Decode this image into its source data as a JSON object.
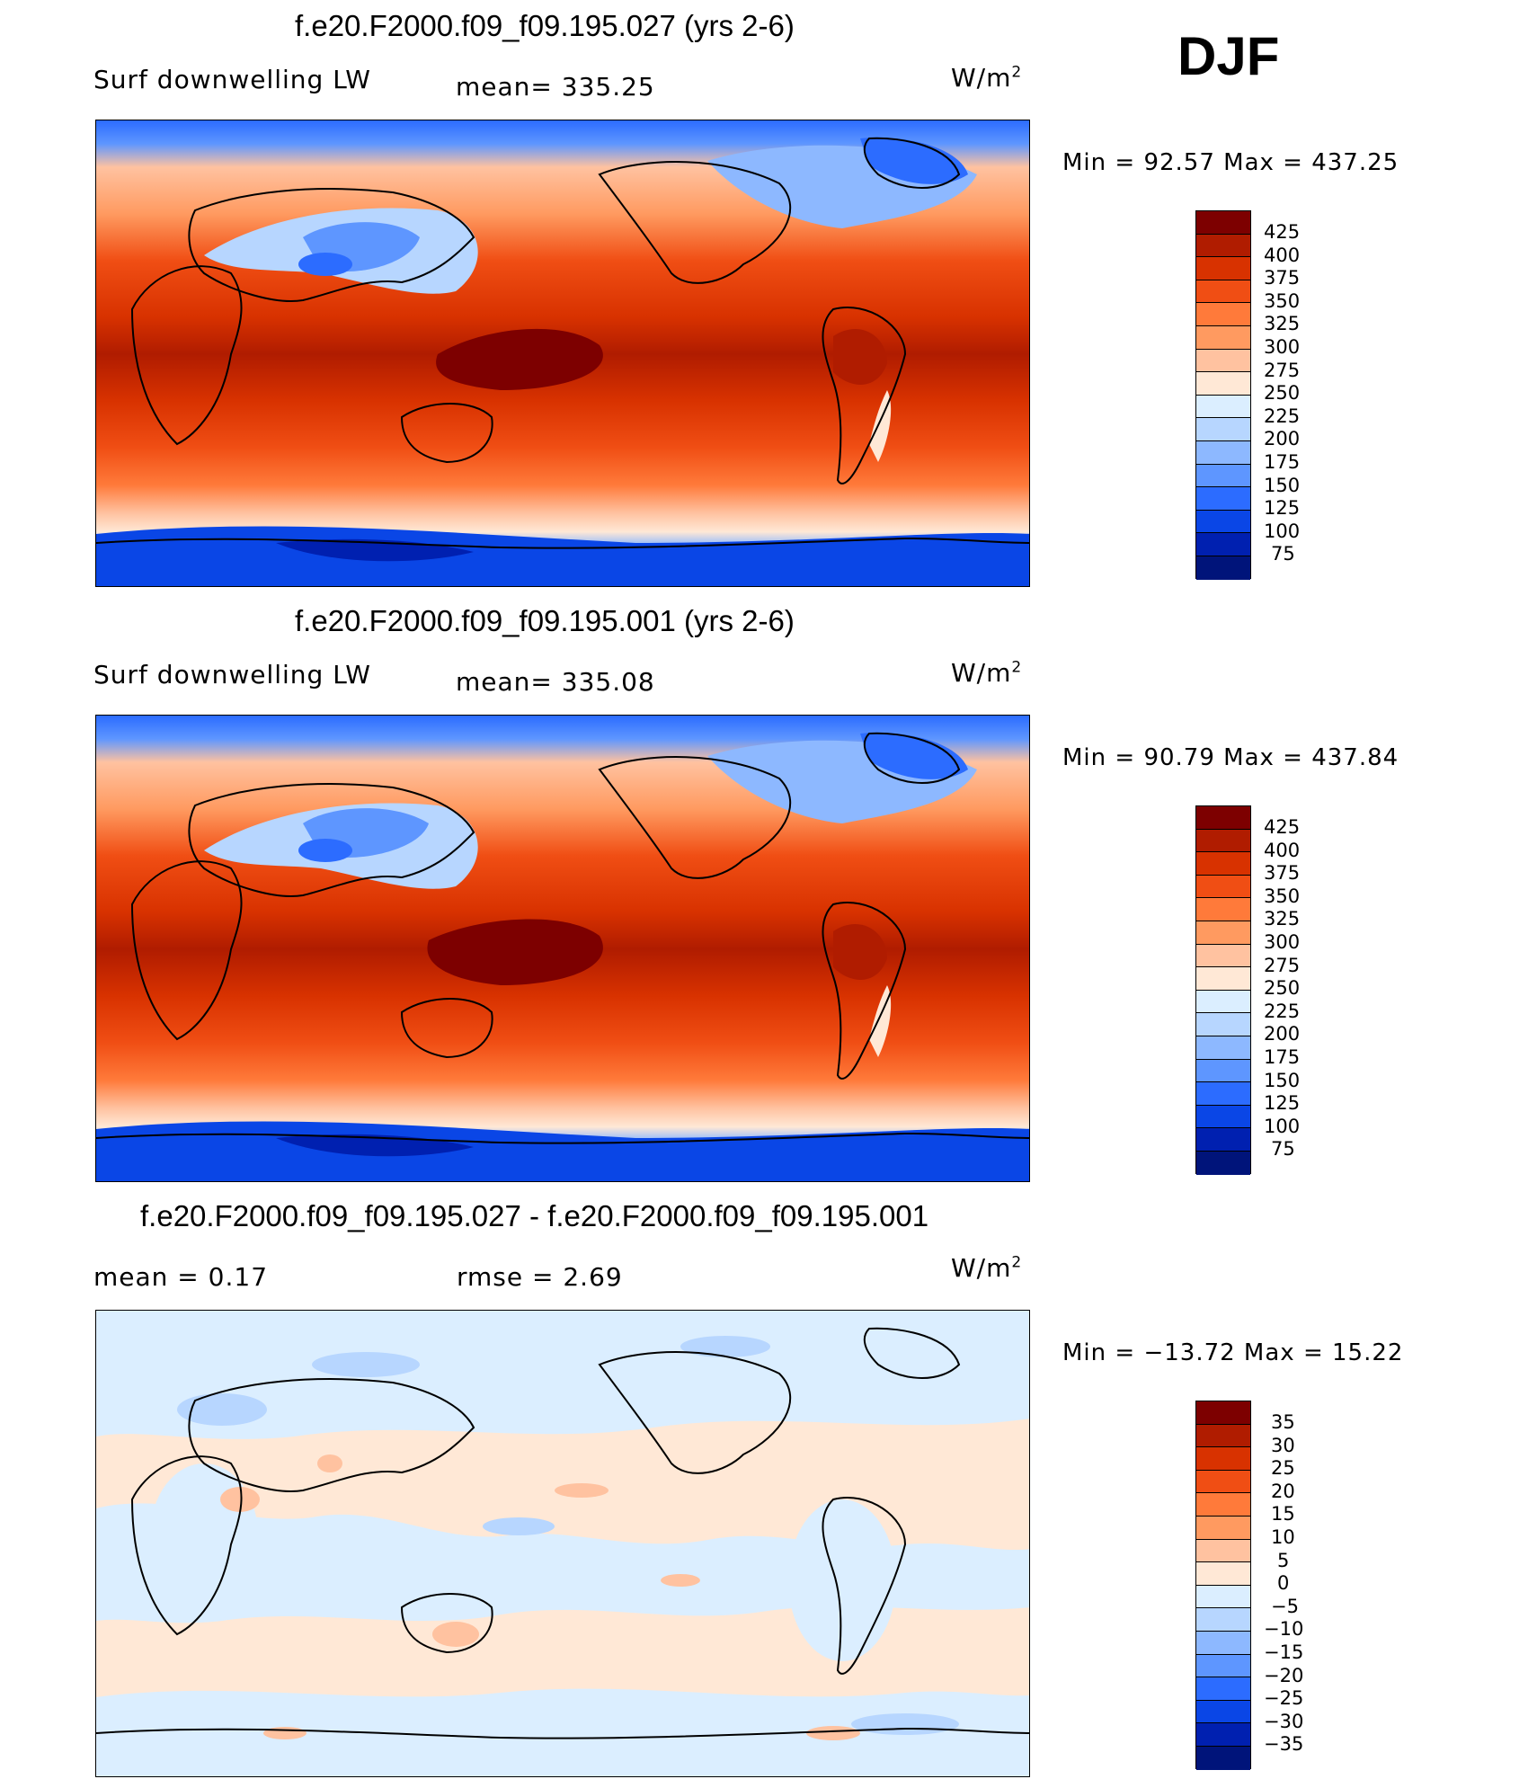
{
  "season": "DJF",
  "panels": [
    {
      "title": "f.e20.F2000.f09_f09.195.027 (yrs 2-6)",
      "left_label": "Surf downwelling LW",
      "center_label": "mean= 335.25",
      "units": "W/m",
      "units_sup": "2",
      "stats": "Min =   92.57 Max = 437.25",
      "colorbar": {
        "levels": [
          "425",
          "400",
          "375",
          "350",
          "325",
          "300",
          "275",
          "250",
          "225",
          "200",
          "175",
          "150",
          "125",
          "100",
          "75"
        ],
        "colors": [
          "#7d0000",
          "#b01c00",
          "#d83200",
          "#f04e14",
          "#ff7a3a",
          "#ff9a60",
          "#ffc2a0",
          "#ffe8d6",
          "#dbeeff",
          "#b7d6ff",
          "#8db8ff",
          "#5e96ff",
          "#2c6cff",
          "#0a46e6",
          "#0020b0",
          "#00147a"
        ]
      }
    },
    {
      "title": "f.e20.F2000.f09_f09.195.001 (yrs 2-6)",
      "left_label": "Surf downwelling LW",
      "center_label": "mean= 335.08",
      "units": "W/m",
      "units_sup": "2",
      "stats": "Min =   90.79 Max = 437.84",
      "colorbar": {
        "levels": [
          "425",
          "400",
          "375",
          "350",
          "325",
          "300",
          "275",
          "250",
          "225",
          "200",
          "175",
          "150",
          "125",
          "100",
          "75"
        ],
        "colors": [
          "#7d0000",
          "#b01c00",
          "#d83200",
          "#f04e14",
          "#ff7a3a",
          "#ff9a60",
          "#ffc2a0",
          "#ffe8d6",
          "#dbeeff",
          "#b7d6ff",
          "#8db8ff",
          "#5e96ff",
          "#2c6cff",
          "#0a46e6",
          "#0020b0",
          "#00147a"
        ]
      }
    },
    {
      "title": "f.e20.F2000.f09_f09.195.027 - f.e20.F2000.f09_f09.195.001",
      "left_label": "mean =     0.17",
      "center_label": "rmse =     2.69",
      "units": "W/m",
      "units_sup": "2",
      "stats": "Min = −13.72 Max =   15.22",
      "colorbar": {
        "levels": [
          "35",
          "30",
          "25",
          "20",
          "15",
          "10",
          "5",
          "0",
          "−5",
          "−10",
          "−15",
          "−20",
          "−25",
          "−30",
          "−35"
        ],
        "colors": [
          "#7d0000",
          "#b01c00",
          "#d83200",
          "#f04e14",
          "#ff7a3a",
          "#ff9a60",
          "#ffc2a0",
          "#ffe8d6",
          "#dbeeff",
          "#b7d6ff",
          "#8db8ff",
          "#5e96ff",
          "#2c6cff",
          "#0a46e6",
          "#0020b0",
          "#00147a"
        ]
      }
    }
  ]
}
